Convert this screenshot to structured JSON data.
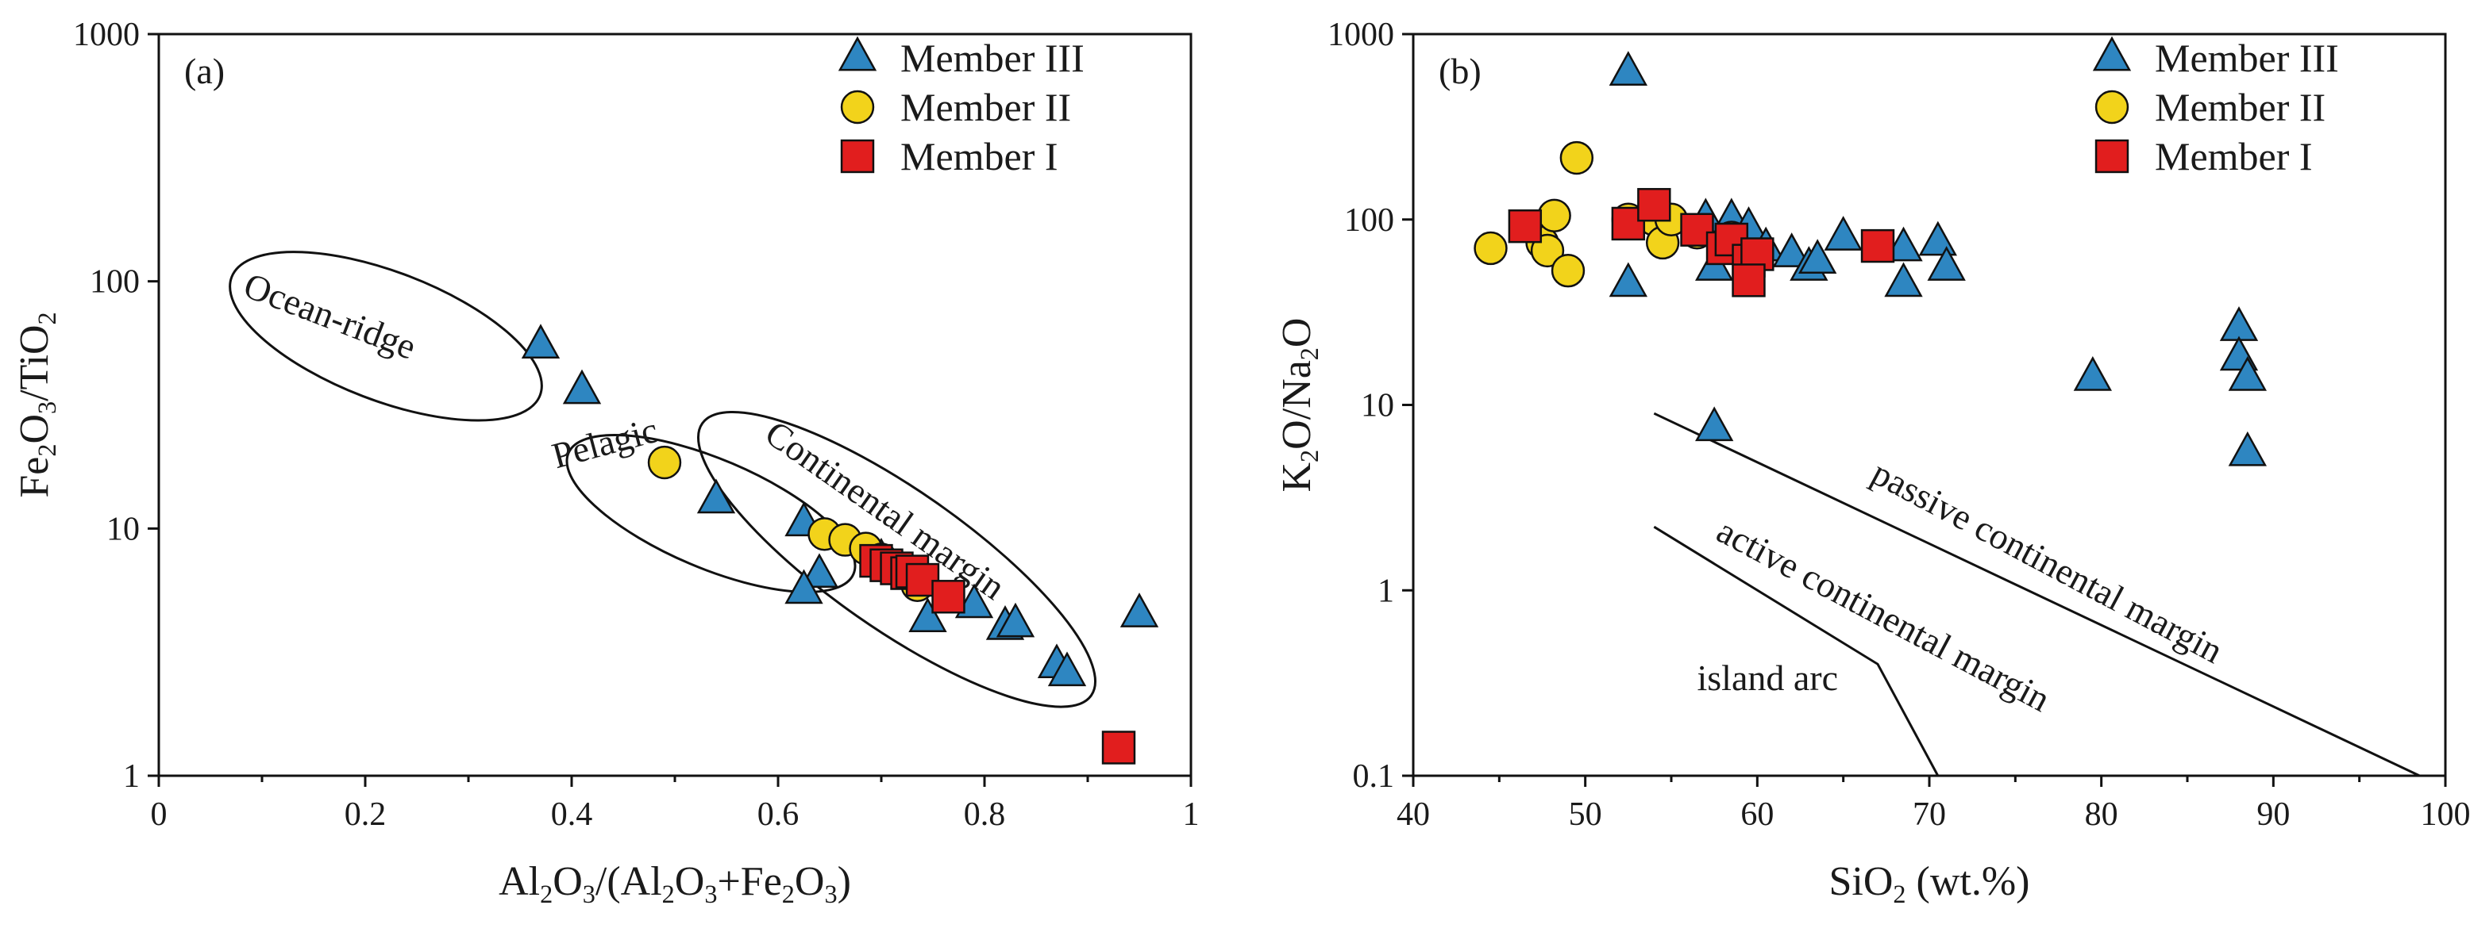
{
  "colors": {
    "member_iii": "#2e86c1",
    "member_ii": "#f2d31b",
    "member_i": "#e11e1e",
    "axis": "#111111"
  },
  "chart_data": [
    {
      "type": "scatter",
      "panel_label": "(a)",
      "xlabel": {
        "base": "Al",
        "parts": [
          "Al",
          "2",
          "O",
          "3",
          "/(Al",
          "2",
          "O",
          "3",
          "+Fe",
          "2",
          "O",
          "3",
          ")"
        ]
      },
      "ylabel": {
        "parts": [
          "Fe",
          "2",
          "O",
          "3",
          "/TiO",
          "2"
        ]
      },
      "x_scale": "linear",
      "y_scale": "log",
      "xlim": [
        0,
        1
      ],
      "ylim": [
        1,
        1000
      ],
      "x_ticks": [
        "0",
        "0.2",
        "0.4",
        "0.6",
        "0.8",
        "1"
      ],
      "y_ticks": [
        "1",
        "10",
        "100",
        "1000"
      ],
      "legend": [
        "Member III",
        "Member II",
        "Member I"
      ],
      "regions": [
        {
          "label": "Ocean-ridge",
          "center": [
            0.22,
            60
          ],
          "rx": 0.16,
          "ry_log": 0.26,
          "angle_deg": 21
        },
        {
          "label": "Pelagic",
          "center": [
            0.535,
            11.5
          ],
          "rx": 0.15,
          "ry_log": 0.22,
          "angle_deg": 23
        },
        {
          "label": "Continental margin",
          "center": [
            0.715,
            7.5
          ],
          "rx": 0.23,
          "ry_log": 0.28,
          "angle_deg": 35
        }
      ],
      "series": [
        {
          "name": "Member III",
          "marker": "triangle",
          "x": [
            0.37,
            0.41,
            0.54,
            0.625,
            0.64,
            0.625,
            0.745,
            0.79,
            0.82,
            0.83,
            0.87,
            0.88,
            0.95,
            0.7
          ],
          "y": [
            55,
            36,
            13,
            10.5,
            6.5,
            5.6,
            4.3,
            4.9,
            4.0,
            4.1,
            2.8,
            2.6,
            4.5,
            7.5
          ]
        },
        {
          "name": "Member II",
          "marker": "circle",
          "x": [
            0.49,
            0.645,
            0.665,
            0.685,
            0.7,
            0.71,
            0.735
          ],
          "y": [
            18.5,
            9.5,
            9.0,
            8.3,
            7.5,
            7.0,
            5.9
          ]
        },
        {
          "name": "Member I",
          "marker": "square",
          "x": [
            0.695,
            0.705,
            0.715,
            0.725,
            0.73,
            0.74,
            0.765,
            0.93
          ],
          "y": [
            7.4,
            7.1,
            6.9,
            6.6,
            6.7,
            6.2,
            5.3,
            1.3
          ]
        }
      ]
    },
    {
      "type": "scatter",
      "panel_label": "(b)",
      "xlabel": {
        "parts": [
          "SiO",
          "2",
          " (wt.%)"
        ]
      },
      "ylabel": {
        "parts": [
          "K",
          "2",
          "O/Na",
          "2",
          "O"
        ]
      },
      "x_scale": "linear",
      "y_scale": "log",
      "xlim": [
        40,
        100
      ],
      "ylim": [
        0.1,
        1000
      ],
      "x_ticks": [
        "40",
        "50",
        "60",
        "70",
        "80",
        "90",
        "100"
      ],
      "y_ticks": [
        "0.1",
        "1",
        "10",
        "100",
        "1000"
      ],
      "legend": [
        "Member III",
        "Member II",
        "Member I"
      ],
      "field_labels": [
        "passive continental margin",
        "active continental margin",
        "island arc"
      ],
      "boundaries": [
        {
          "name": "passive-active",
          "points": [
            [
              54,
              9
            ],
            [
              98.5,
              0.1
            ]
          ]
        },
        {
          "name": "active-arc",
          "points": [
            [
              54,
              2.2
            ],
            [
              67,
              0.4
            ],
            [
              70.5,
              0.1
            ]
          ]
        }
      ],
      "series": [
        {
          "name": "Member III",
          "marker": "triangle",
          "x": [
            52.5,
            52.5,
            57.5,
            57.5,
            58.5,
            59.5,
            60.5,
            62,
            63,
            63.5,
            65,
            68.5,
            68.5,
            70.5,
            71,
            57,
            79.5,
            88,
            88,
            88.5,
            88.5
          ],
          "y": [
            620,
            45,
            55,
            7.5,
            100,
            90,
            70,
            65,
            55,
            60,
            80,
            70,
            45,
            75,
            55,
            100,
            14,
            26,
            18,
            14,
            5.5
          ]
        },
        {
          "name": "Member II",
          "marker": "circle",
          "x": [
            44.5,
            47.5,
            47.8,
            48.2,
            49,
            49.5,
            52.5,
            54,
            54.5,
            55,
            56.5,
            58.5
          ],
          "y": [
            70,
            75,
            68,
            105,
            53,
            215,
            100,
            100,
            75,
            100,
            85,
            80
          ]
        },
        {
          "name": "Member I",
          "marker": "square",
          "x": [
            46.5,
            52.5,
            54,
            56.5,
            58,
            58.5,
            59.5,
            60,
            59.5,
            67
          ],
          "y": [
            92,
            95,
            120,
            88,
            70,
            78,
            60,
            65,
            47,
            72
          ]
        }
      ]
    }
  ]
}
